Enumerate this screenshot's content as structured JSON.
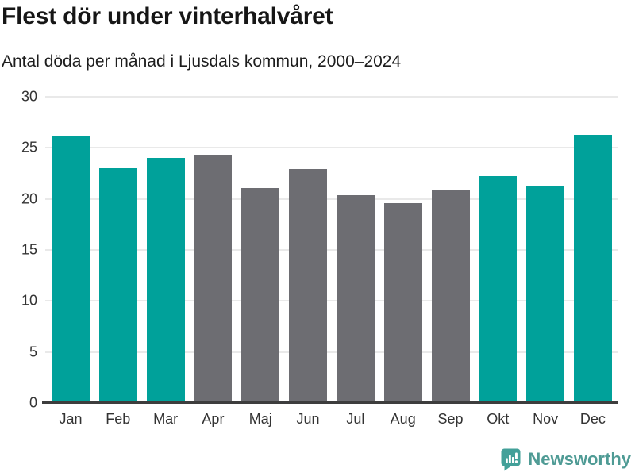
{
  "header": {
    "title": "Flest dör under vinterhalvåret",
    "subtitle": "Antal döda per månad i Ljusdals kommun, 2000–2024"
  },
  "chart_data": {
    "type": "bar",
    "title": "Flest dör under vinterhalvåret",
    "subtitle": "Antal döda per månad i Ljusdals kommun, 2000–2024",
    "categories": [
      "Jan",
      "Feb",
      "Mar",
      "Apr",
      "Maj",
      "Jun",
      "Jul",
      "Aug",
      "Sep",
      "Okt",
      "Nov",
      "Dec"
    ],
    "values": [
      26.1,
      23.0,
      24.0,
      24.3,
      21.1,
      22.9,
      20.4,
      19.6,
      20.9,
      22.2,
      21.2,
      26.3
    ],
    "highlighted": [
      true,
      true,
      true,
      false,
      false,
      false,
      false,
      false,
      false,
      true,
      true,
      true
    ],
    "colors": {
      "highlight": "#00a19a",
      "base": "#6d6d72",
      "gridline": "#e9e9e9",
      "axis": "#3d3d3d",
      "tick_text": "#333333"
    },
    "xlabel": "",
    "ylabel": "",
    "ylim": [
      0,
      30
    ],
    "yticks": [
      0,
      5,
      10,
      15,
      20,
      25,
      30
    ],
    "grid": "horizontal",
    "legend": "none"
  },
  "footer": {
    "brand": "Newsworthy",
    "brand_color": "#4f9b95",
    "logo_icon": "newsworthy-speech-bubble-chart-icon",
    "logo_color": "#43a099"
  }
}
